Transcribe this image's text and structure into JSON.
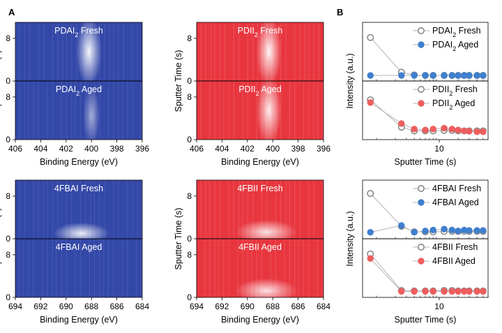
{
  "panel_labels": {
    "a": "A",
    "b": "B"
  },
  "colors": {
    "blue_dark": "#3448a8",
    "blue_mid": "#4a5fb8",
    "red_dark": "#e8363f",
    "red_mid": "#ee5a60",
    "blue_marker": "#3f7fce",
    "red_marker": "#ee5e5e",
    "gray_marker": "#888888",
    "line": "#b5b5b5"
  },
  "chart_data": [
    {
      "type": "heatmap",
      "id": "pdai2",
      "theme": "blue",
      "xlabel": "Binding Energy (eV)",
      "ylabel": "Sputter Time (s)",
      "xlim": [
        406,
        396
      ],
      "xticks": [
        406,
        404,
        402,
        400,
        398,
        396
      ],
      "panels": [
        {
          "title_main": "PDAI",
          "sub": "2",
          "title_rest": " Fresh",
          "ylim": [
            0,
            11
          ],
          "yticks": [
            0,
            8
          ],
          "peak": {
            "center": 400.2,
            "sigma": 0.45,
            "t_min": 0,
            "t_max": 11,
            "intensity": 0.95
          }
        },
        {
          "title_main": "PDAI",
          "sub": "2",
          "title_rest": " Aged",
          "ylim": [
            0,
            11
          ],
          "yticks": [
            0,
            8
          ],
          "peak": {
            "center": 400.0,
            "sigma": 0.3,
            "t_min": 0,
            "t_max": 9,
            "intensity": 0.55
          }
        }
      ]
    },
    {
      "type": "heatmap",
      "id": "pdii2",
      "theme": "red",
      "xlabel": "Binding Energy (eV)",
      "ylabel": "Sputter Time (s)",
      "xlim": [
        406,
        396
      ],
      "xticks": [
        406,
        404,
        402,
        400,
        398,
        396
      ],
      "panels": [
        {
          "title_main": "PDII",
          "sub": "2",
          "title_rest": " Fresh",
          "ylim": [
            0,
            11
          ],
          "yticks": [
            0,
            8
          ],
          "peak": {
            "center": 400.3,
            "sigma": 0.45,
            "t_min": 0,
            "t_max": 11,
            "intensity": 0.95
          }
        },
        {
          "title_main": "PDII",
          "sub": "2",
          "title_rest": " Aged",
          "ylim": [
            0,
            11
          ],
          "yticks": [
            0,
            8
          ],
          "peak": {
            "center": 400.3,
            "sigma": 0.45,
            "t_min": 0,
            "t_max": 11,
            "intensity": 0.9
          }
        }
      ]
    },
    {
      "type": "heatmap",
      "id": "4fbai",
      "theme": "blue",
      "xlabel": "Binding Energy (eV)",
      "ylabel": "Sputter Time (s)",
      "xlim": [
        694,
        684
      ],
      "xticks": [
        694,
        692,
        690,
        688,
        686,
        684
      ],
      "panels": [
        {
          "title_main": "4FBAI",
          "sub": "",
          "title_rest": " Fresh",
          "ylim": [
            0,
            11
          ],
          "yticks": [
            0,
            8
          ],
          "peak": {
            "center": 688.8,
            "sigma": 1.0,
            "t_min": 0,
            "t_max": 2,
            "intensity": 0.9
          }
        },
        {
          "title_main": "4FBAI",
          "sub": "",
          "title_rest": " Aged",
          "ylim": [
            0,
            11
          ],
          "yticks": [
            0,
            8
          ],
          "peak": null
        }
      ]
    },
    {
      "type": "heatmap",
      "id": "4fbii",
      "theme": "red",
      "xlabel": "Binding Energy (eV)",
      "ylabel": "Sputter Time (s)",
      "xlim": [
        694,
        684
      ],
      "xticks": [
        694,
        692,
        690,
        688,
        686,
        684
      ],
      "panels": [
        {
          "title_main": "4FBII",
          "sub": "",
          "title_rest": " Fresh",
          "ylim": [
            0,
            11
          ],
          "yticks": [
            0,
            8
          ],
          "peak": {
            "center": 688.5,
            "sigma": 1.1,
            "t_min": 0,
            "t_max": 2.5,
            "intensity": 0.85
          }
        },
        {
          "title_main": "4FBII",
          "sub": "",
          "title_rest": " Aged",
          "ylim": [
            0,
            11
          ],
          "yticks": [
            0,
            8
          ],
          "peak": {
            "center": 688.5,
            "sigma": 1.1,
            "t_min": 0,
            "t_max": 2.5,
            "intensity": 0.85
          }
        }
      ]
    },
    {
      "type": "scatter",
      "id": "b_top",
      "xscale": "log",
      "xlim": [
        0.6,
        60
      ],
      "xticks": [
        10
      ],
      "xlabel": "Sputter Time (s)",
      "ylabel": "Intensity (a.u.)",
      "panels": [
        {
          "ylim": [
            0,
            1.1
          ],
          "series": [
            {
              "name_main": "PDAI",
              "sub": "2",
              "name_rest": " Fresh",
              "style": "open-gray",
              "x": [
                0.8,
                2.5,
                4,
                6,
                8,
                12,
                16,
                20,
                25,
                30,
                40,
                50
              ],
              "y": [
                0.86,
                0.1,
                0.04,
                0.03,
                0.03,
                0.03,
                0.03,
                0.03,
                0.03,
                0.03,
                0.03,
                0.03
              ]
            },
            {
              "name_main": "PDAI",
              "sub": "2",
              "name_rest": " Aged",
              "style": "filled-blue",
              "x": [
                0.8,
                2.5,
                4,
                6,
                8,
                12,
                16,
                20,
                25,
                30,
                40,
                50
              ],
              "y": [
                0.03,
                0.03,
                0.03,
                0.03,
                0.03,
                0.03,
                0.03,
                0.03,
                0.03,
                0.03,
                0.03,
                0.03
              ]
            }
          ]
        },
        {
          "ylim": [
            0,
            1.1
          ],
          "series": [
            {
              "name_main": "PDII",
              "sub": "2",
              "name_rest": " Fresh",
              "style": "open-gray",
              "x": [
                0.8,
                2.5,
                4,
                6,
                8,
                12,
                16,
                20,
                25,
                30,
                40,
                50
              ],
              "y": [
                0.78,
                0.18,
                0.1,
                0.1,
                0.1,
                0.11,
                0.11,
                0.1,
                0.1,
                0.1,
                0.1,
                0.1
              ]
            },
            {
              "name_main": "PDII",
              "sub": "2",
              "name_rest": " Aged",
              "style": "filled-red",
              "x": [
                0.8,
                2.5,
                4,
                6,
                8,
                12,
                16,
                20,
                25,
                30,
                40,
                50
              ],
              "y": [
                0.72,
                0.26,
                0.14,
                0.12,
                0.14,
                0.16,
                0.14,
                0.12,
                0.1,
                0.09,
                0.08,
                0.08
              ]
            }
          ]
        }
      ]
    },
    {
      "type": "scatter",
      "id": "b_bottom",
      "xscale": "log",
      "xlim": [
        0.6,
        60
      ],
      "xticks": [
        10
      ],
      "xlabel": "Sputter Time (s)",
      "ylabel": "Intensity (a.u.)",
      "panels": [
        {
          "ylim": [
            0,
            1.1
          ],
          "series": [
            {
              "name_main": "4FBAI",
              "sub": "",
              "name_rest": " Fresh",
              "style": "open-gray",
              "x": [
                0.8,
                2.5,
                4,
                6,
                8,
                12,
                16,
                20,
                25,
                30,
                40,
                50
              ],
              "y": [
                0.9,
                0.18,
                0.06,
                0.06,
                0.06,
                0.07,
                0.07,
                0.07,
                0.07,
                0.07,
                0.07,
                0.07
              ]
            },
            {
              "name_main": "4FBAI",
              "sub": "",
              "name_rest": " Aged",
              "style": "filled-blue",
              "x": [
                0.8,
                2.5,
                4,
                6,
                8,
                12,
                16,
                20,
                25,
                30,
                40,
                50
              ],
              "y": [
                0.05,
                0.2,
                0.05,
                0.08,
                0.1,
                0.12,
                0.1,
                0.08,
                0.1,
                0.09,
                0.09,
                0.09
              ]
            }
          ]
        },
        {
          "ylim": [
            0,
            1.1
          ],
          "series": [
            {
              "name_main": "4FBII",
              "sub": "",
              "name_rest": " Fresh",
              "style": "open-gray",
              "x": [
                0.8,
                2.5,
                4,
                6,
                8,
                12,
                16,
                20,
                25,
                30,
                40,
                50
              ],
              "y": [
                0.86,
                0.06,
                0.05,
                0.05,
                0.05,
                0.06,
                0.06,
                0.05,
                0.05,
                0.05,
                0.05,
                0.05
              ]
            },
            {
              "name_main": "4FBII",
              "sub": "",
              "name_rest": " Aged",
              "style": "filled-red",
              "x": [
                0.8,
                2.5,
                4,
                6,
                8,
                12,
                16,
                20,
                25,
                30,
                40,
                50
              ],
              "y": [
                0.76,
                0.04,
                0.04,
                0.04,
                0.04,
                0.04,
                0.04,
                0.04,
                0.04,
                0.04,
                0.04,
                0.04
              ]
            }
          ]
        }
      ]
    }
  ]
}
